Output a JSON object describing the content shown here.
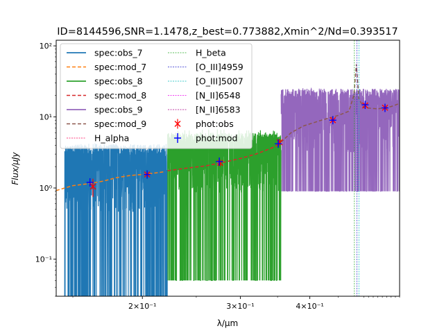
{
  "chart_data": {
    "type": "line",
    "title": "ID=8144596,SNR=1.1478,z_best=0.773882,Xmin^2/Nd=0.393517",
    "xlabel": "λ/μm",
    "ylabel": "Flux/μJy",
    "x_scale": "log",
    "y_scale": "log",
    "xlim": [
      0.14,
      0.58
    ],
    "ylim": [
      0.03,
      120
    ],
    "x_ticks": [
      {
        "value": 0.2,
        "label": "2×10⁻¹"
      },
      {
        "value": 0.3,
        "label": "3×10⁻¹"
      },
      {
        "value": 0.4,
        "label": "4×10⁻¹"
      }
    ],
    "y_ticks": [
      {
        "value": 0.1,
        "label": "10⁻¹"
      },
      {
        "value": 1,
        "label": "10⁰"
      },
      {
        "value": 10,
        "label": "10¹"
      },
      {
        "value": 100,
        "label": "10²"
      }
    ],
    "grid": false,
    "legend_position": "top-left",
    "series": [
      {
        "name": "spec:obs_7",
        "color": "#1f77b4",
        "style": "solid",
        "noisy": true,
        "x_range": [
          0.145,
          0.222
        ],
        "mean": 1.3,
        "upper": 4.2,
        "lower": 0.03
      },
      {
        "name": "spec:mod_7",
        "color": "#ff7f0e",
        "style": "dashed",
        "x": [
          0.14,
          0.145,
          0.15,
          0.16,
          0.17,
          0.18,
          0.19,
          0.2,
          0.21,
          0.22
        ],
        "y": [
          0.92,
          1.0,
          1.08,
          1.15,
          1.25,
          1.4,
          1.5,
          1.55,
          1.62,
          1.7
        ]
      },
      {
        "name": "spec:obs_8",
        "color": "#2ca02c",
        "style": "solid",
        "noisy": true,
        "x_range": [
          0.222,
          0.355
        ],
        "mean": 2.4,
        "upper": 6.0,
        "lower": 0.05
      },
      {
        "name": "spec:mod_8",
        "color": "#d62728",
        "style": "dashed",
        "x": [
          0.222,
          0.24,
          0.26,
          0.28,
          0.3,
          0.32,
          0.34,
          0.355
        ],
        "y": [
          1.75,
          1.9,
          2.05,
          2.3,
          2.6,
          3.0,
          3.6,
          4.2
        ]
      },
      {
        "name": "spec:obs_9",
        "color": "#9467bd",
        "style": "solid",
        "noisy": true,
        "x_range": [
          0.355,
          0.58
        ],
        "mean": 9.0,
        "upper": 25,
        "lower": 0.9
      },
      {
        "name": "spec:mod_9",
        "color": "#8c564b",
        "style": "dashed",
        "x": [
          0.355,
          0.37,
          0.39,
          0.42,
          0.45,
          0.47,
          0.48,
          0.485,
          0.49,
          0.5,
          0.53,
          0.56,
          0.58
        ],
        "y": [
          4.4,
          6.0,
          7.5,
          9.0,
          10.5,
          12.0,
          20.0,
          55.0,
          18.0,
          13.5,
          13.0,
          14.0,
          15.5
        ]
      }
    ],
    "phot_obs": {
      "name": "phot:obs",
      "color": "#ff0000",
      "points": [
        {
          "x": 0.163,
          "y": 1.05,
          "err": 0.3
        },
        {
          "x": 0.204,
          "y": 1.55,
          "err": 0.12
        },
        {
          "x": 0.276,
          "y": 2.25,
          "err": 0.25
        },
        {
          "x": 0.353,
          "y": 4.4,
          "err": 0.5
        },
        {
          "x": 0.44,
          "y": 9.0,
          "err": 0.7
        },
        {
          "x": 0.503,
          "y": 14.5,
          "err": 1.5
        },
        {
          "x": 0.546,
          "y": 13.5,
          "err": 1.2
        }
      ]
    },
    "phot_mod": {
      "name": "phot:mod",
      "color": "#0000ff",
      "points": [
        {
          "x": 0.161,
          "y": 1.2
        },
        {
          "x": 0.204,
          "y": 1.55
        },
        {
          "x": 0.275,
          "y": 2.35
        },
        {
          "x": 0.351,
          "y": 4.2
        },
        {
          "x": 0.44,
          "y": 9.0
        },
        {
          "x": 0.503,
          "y": 14.8
        },
        {
          "x": 0.546,
          "y": 13.4
        }
      ]
    },
    "lines": [
      {
        "name": "H_alpha",
        "color": "#ff0055",
        "x": null
      },
      {
        "name": "H_beta",
        "color": "#22aa22",
        "x": 0.481
      },
      {
        "name": "[O_III]4959",
        "color": "#2222cc",
        "x": 0.486
      },
      {
        "name": "[O_III]5007",
        "color": "#00bbbb",
        "x": 0.49
      },
      {
        "name": "[N_II]6548",
        "color": "#ee00ee",
        "x": null
      },
      {
        "name": "[N_II]6583",
        "color": "#aa0088",
        "x": null
      }
    ]
  }
}
